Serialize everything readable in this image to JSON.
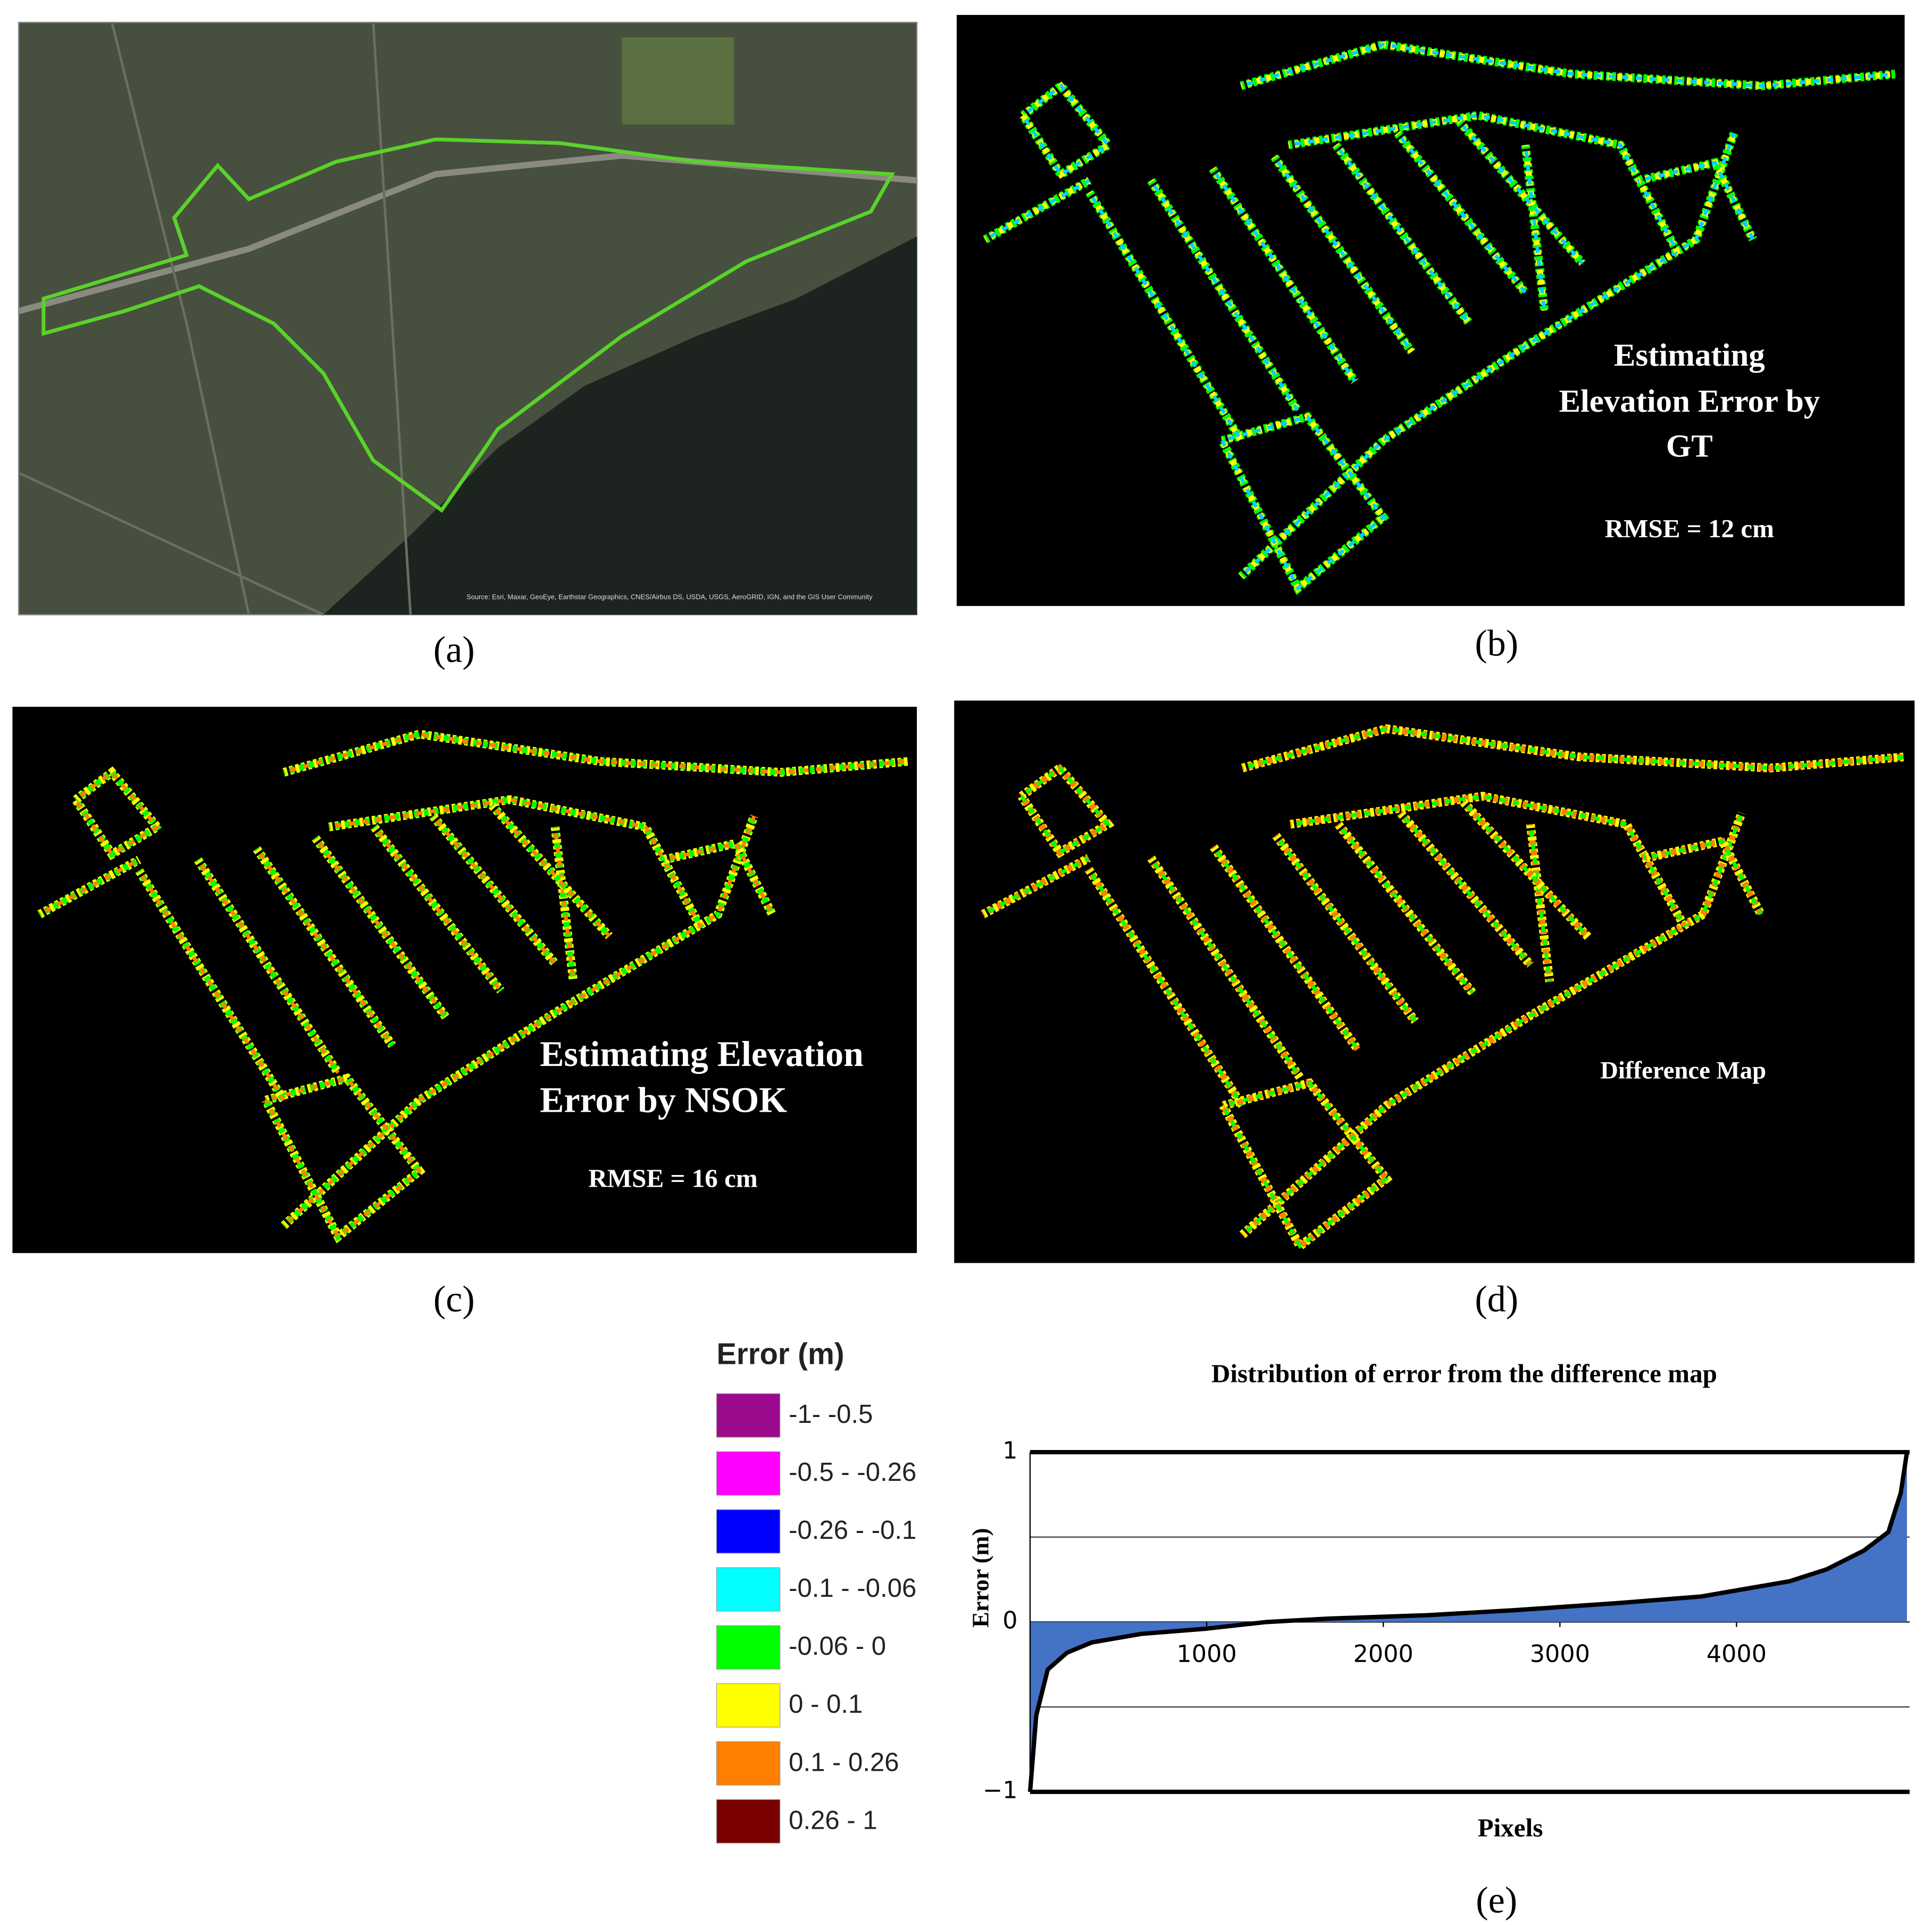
{
  "panels": [
    {
      "caption": "(a)",
      "source": "Source: Esri, Maxar, GeoEye, Earthstar Geographics, CNES/Airbus DS, USDA, USGS, AeroGRID, IGN, and the GIS User Community"
    },
    {
      "caption": "(b)",
      "label_lines": [
        "Estimating",
        "Elevation Error by",
        "GT"
      ],
      "rmse": "RMSE = 12 cm"
    },
    {
      "caption": "(c)",
      "label_lines": [
        "Estimating Elevation",
        "Error by NSOK"
      ],
      "rmse": "RMSE = 16 cm"
    },
    {
      "caption": "(d)",
      "label_lines": [
        "Difference Map"
      ]
    },
    {
      "caption": "(e)"
    }
  ],
  "legend": {
    "title": "Error (m)",
    "items": [
      {
        "label": "-1- -0.5",
        "color": "#9c0a8e"
      },
      {
        "label": "-0.5 - -0.26",
        "color": "#ff00ff"
      },
      {
        "label": "-0.26 - -0.1",
        "color": "#0000ff"
      },
      {
        "label": "-0.1 - -0.06",
        "color": "#00ffff"
      },
      {
        "label": "-0.06 - 0",
        "color": "#00ff00"
      },
      {
        "label": "0 - 0.1",
        "color": "#ffff00"
      },
      {
        "label": "0.1 - 0.26",
        "color": "#ff7f00"
      },
      {
        "label": "0.26 - 1",
        "color": "#7a0000"
      }
    ]
  },
  "chart_data": {
    "type": "area",
    "title": "Distribution of error from the difference map",
    "x_label": "Pixels",
    "y_label": "Error (m)",
    "x": [
      0,
      35,
      100,
      210,
      350,
      630,
      990,
      1340,
      1690,
      2250,
      2750,
      3310,
      3800,
      4300,
      4510,
      4720,
      4860,
      4930,
      4965
    ],
    "series": [
      {
        "color": "#4472c4",
        "values": [
          -1,
          -0.55,
          -0.28,
          -0.18,
          -0.12,
          -0.07,
          -0.04,
          0,
          0.02,
          0.04,
          0.07,
          0.11,
          0.15,
          0.24,
          0.31,
          0.42,
          0.53,
          0.76,
          1
        ]
      }
    ],
    "xlim": [
      0,
      4980
    ],
    "ylim": [
      -1,
      1
    ],
    "xticks": [
      1000,
      2000,
      3000,
      4000
    ],
    "yticks": [
      {
        "value": -1,
        "label": "−1"
      },
      0,
      1
    ],
    "grid_lines": [
      -0.5,
      0.5
    ]
  }
}
